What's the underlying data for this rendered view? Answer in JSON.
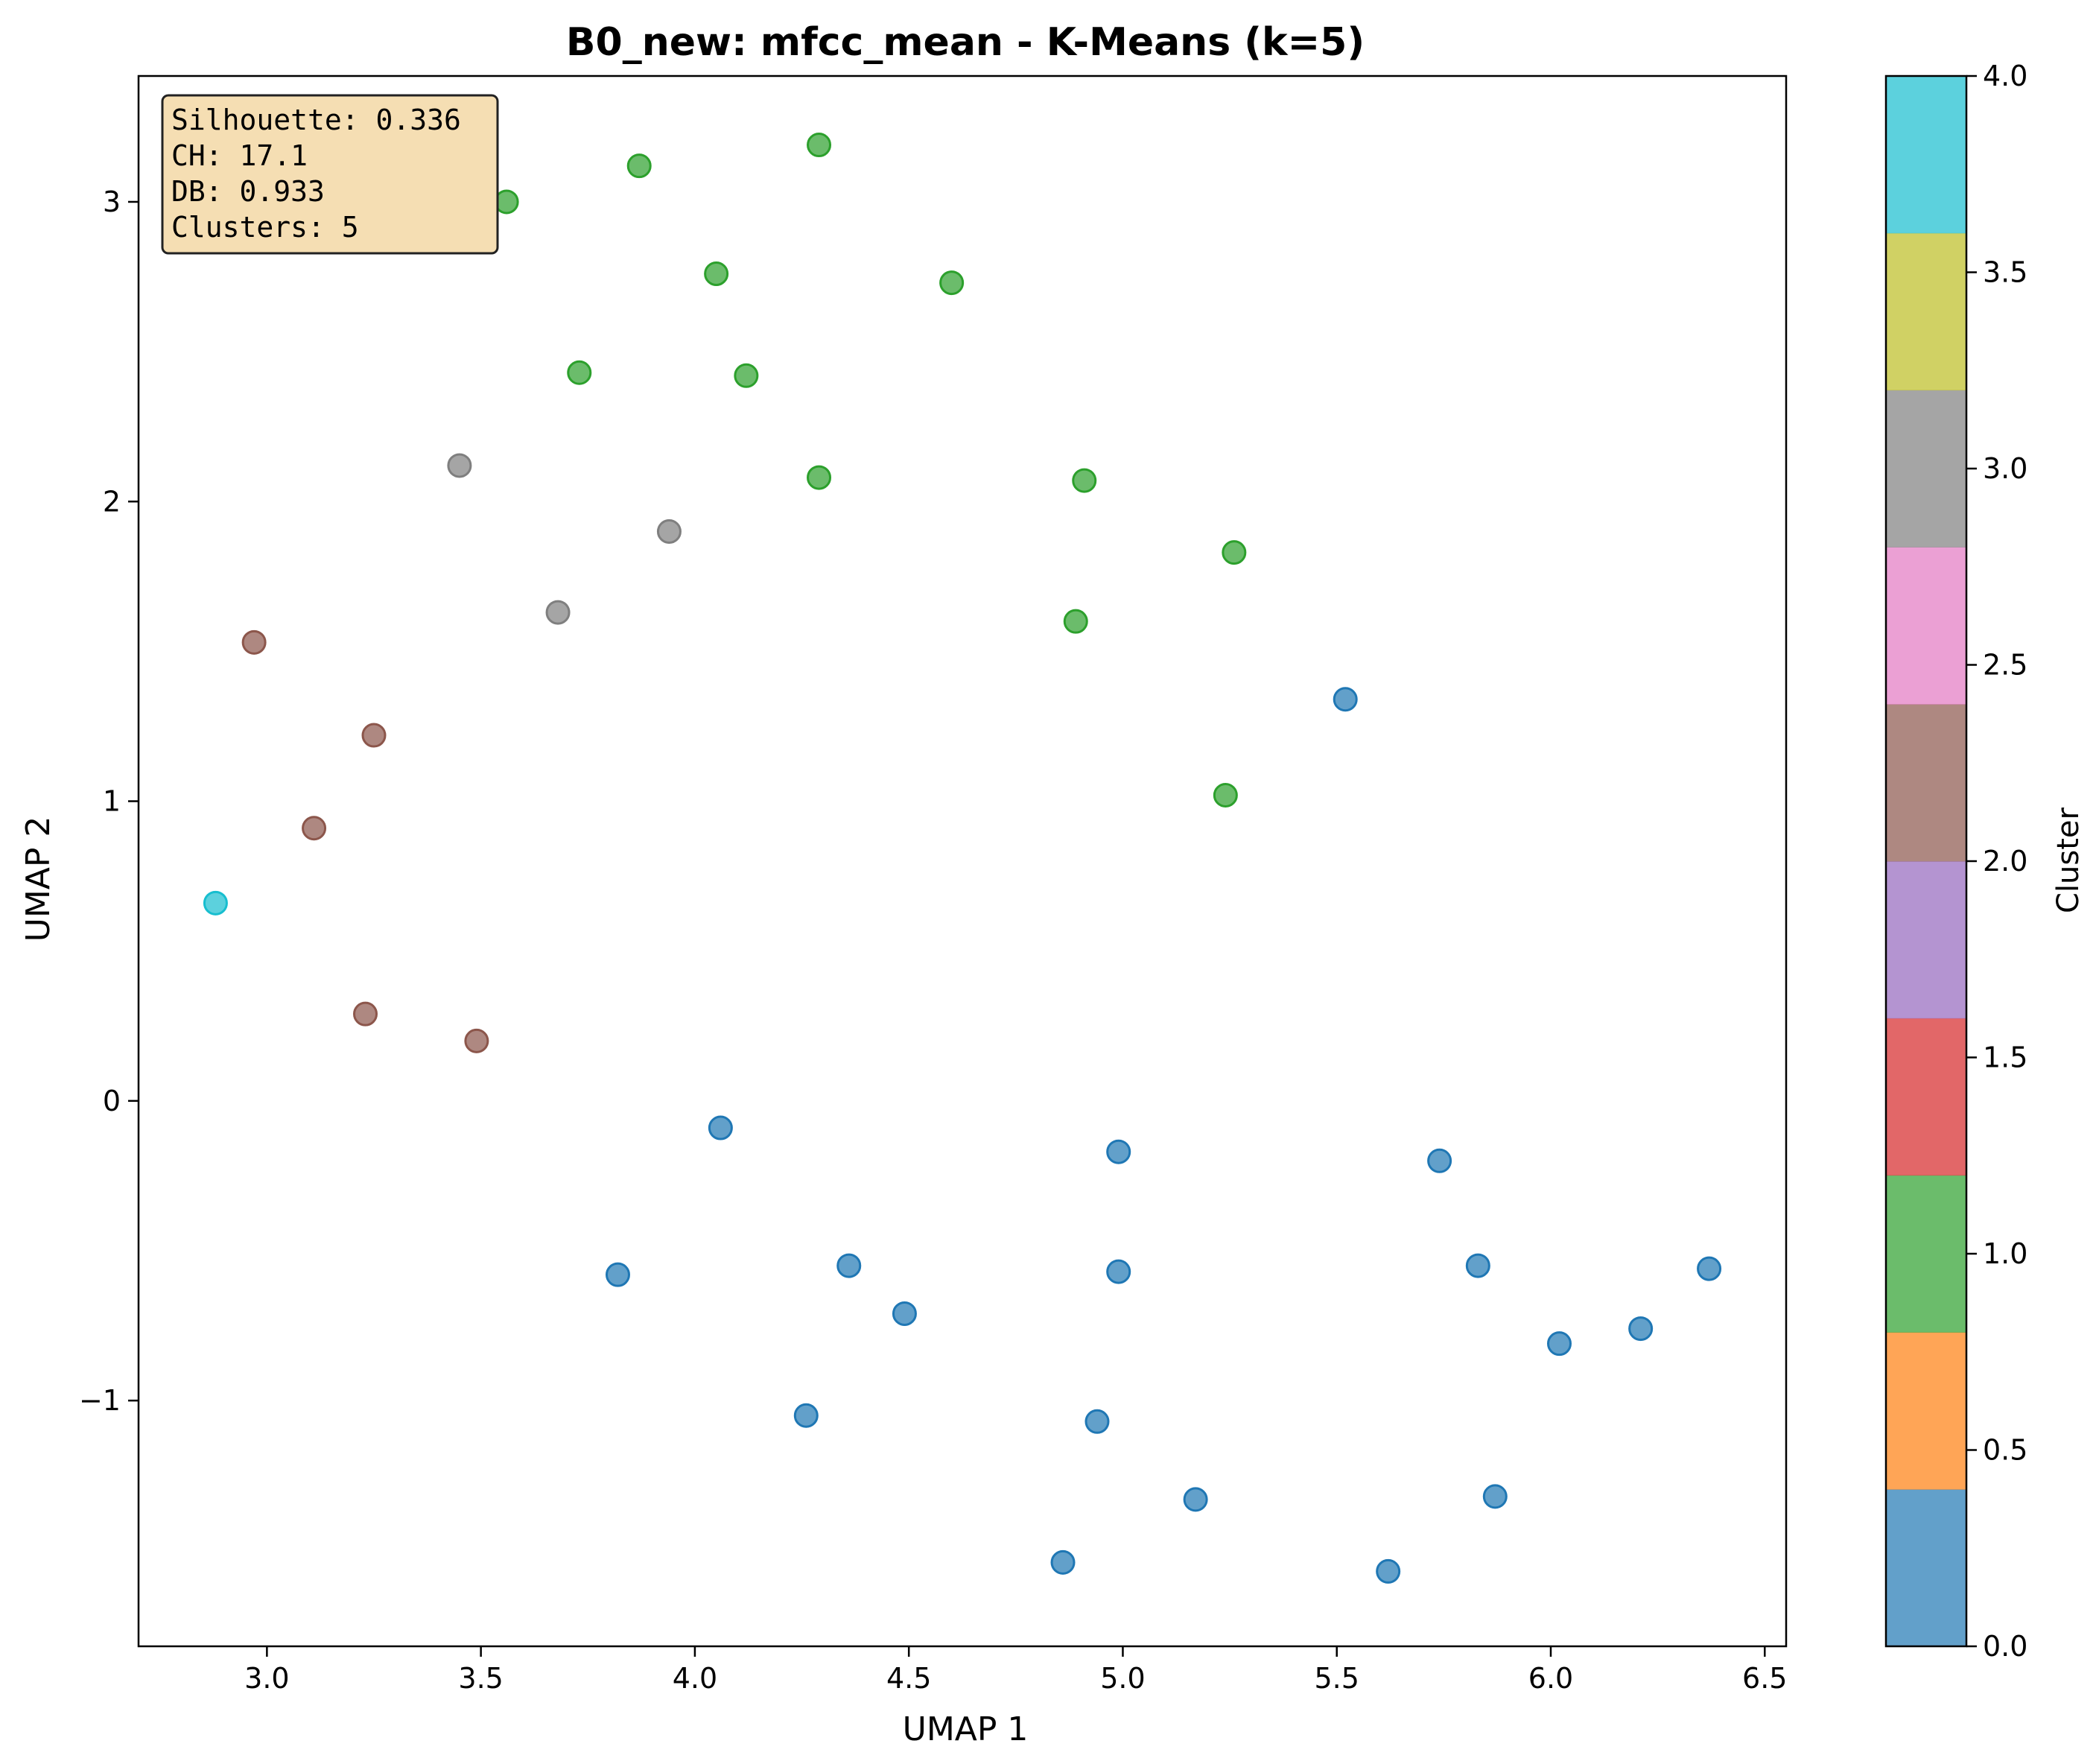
{
  "chart_data": {
    "type": "scatter",
    "title": "B0_new: mfcc_mean - K-Means (k=5)",
    "xlabel": "UMAP 1",
    "ylabel": "UMAP 2",
    "xlim": [
      2.7,
      6.55
    ],
    "ylim": [
      -1.82,
      3.42
    ],
    "x_ticks": [
      3.0,
      3.5,
      4.0,
      4.5,
      5.0,
      5.5,
      6.0,
      6.5
    ],
    "x_tick_labels": [
      "3.0",
      "3.5",
      "4.0",
      "4.5",
      "5.0",
      "5.5",
      "6.0",
      "6.5"
    ],
    "y_ticks": [
      -1,
      0,
      1,
      2,
      3
    ],
    "y_tick_labels": [
      "−1",
      "0",
      "1",
      "2",
      "3"
    ],
    "grid": false,
    "marker_alpha": 0.7,
    "stats_box": {
      "lines": [
        "Silhouette: 0.336",
        "CH: 17.1",
        "DB: 0.933",
        "Clusters: 5"
      ],
      "background": "#f5deb3"
    },
    "colorbar": {
      "label": "Cluster",
      "range": [
        0,
        4
      ],
      "ticks": [
        0.0,
        0.5,
        1.0,
        1.5,
        2.0,
        2.5,
        3.0,
        3.5,
        4.0
      ],
      "tick_labels": [
        "0.0",
        "0.5",
        "1.0",
        "1.5",
        "2.0",
        "2.5",
        "3.0",
        "3.5",
        "4.0"
      ],
      "bands": [
        "#1f77b4",
        "#ff7f0e",
        "#2ca02c",
        "#d62728",
        "#9467bd",
        "#8c564b",
        "#e377c2",
        "#7f7f7f",
        "#bcbd22",
        "#17becf"
      ]
    },
    "cluster_colors": {
      "0": "#1f77b4",
      "1": "#2ca02c",
      "2": "#8c564b",
      "3": "#7f7f7f",
      "4": "#17becf"
    },
    "points": [
      {
        "x": 3.56,
        "y": 3.0,
        "cluster": 1
      },
      {
        "x": 3.87,
        "y": 3.12,
        "cluster": 1
      },
      {
        "x": 4.29,
        "y": 3.19,
        "cluster": 1
      },
      {
        "x": 4.05,
        "y": 2.76,
        "cluster": 1
      },
      {
        "x": 4.6,
        "y": 2.73,
        "cluster": 1
      },
      {
        "x": 3.73,
        "y": 2.43,
        "cluster": 1
      },
      {
        "x": 4.12,
        "y": 2.42,
        "cluster": 1
      },
      {
        "x": 4.29,
        "y": 2.08,
        "cluster": 1
      },
      {
        "x": 4.91,
        "y": 2.07,
        "cluster": 1
      },
      {
        "x": 5.26,
        "y": 1.83,
        "cluster": 1
      },
      {
        "x": 4.89,
        "y": 1.6,
        "cluster": 1
      },
      {
        "x": 5.24,
        "y": 1.02,
        "cluster": 1
      },
      {
        "x": 3.45,
        "y": 2.12,
        "cluster": 3
      },
      {
        "x": 3.94,
        "y": 1.9,
        "cluster": 3
      },
      {
        "x": 3.68,
        "y": 1.63,
        "cluster": 3
      },
      {
        "x": 2.97,
        "y": 1.53,
        "cluster": 2
      },
      {
        "x": 3.25,
        "y": 1.22,
        "cluster": 2
      },
      {
        "x": 3.11,
        "y": 0.91,
        "cluster": 2
      },
      {
        "x": 3.23,
        "y": 0.29,
        "cluster": 2
      },
      {
        "x": 3.49,
        "y": 0.2,
        "cluster": 2
      },
      {
        "x": 2.88,
        "y": 0.66,
        "cluster": 4
      },
      {
        "x": 5.52,
        "y": 1.34,
        "cluster": 0
      },
      {
        "x": 4.06,
        "y": -0.09,
        "cluster": 0
      },
      {
        "x": 4.99,
        "y": -0.17,
        "cluster": 0
      },
      {
        "x": 5.74,
        "y": -0.2,
        "cluster": 0
      },
      {
        "x": 3.82,
        "y": -0.58,
        "cluster": 0
      },
      {
        "x": 4.36,
        "y": -0.55,
        "cluster": 0
      },
      {
        "x": 4.49,
        "y": -0.71,
        "cluster": 0
      },
      {
        "x": 4.99,
        "y": -0.57,
        "cluster": 0
      },
      {
        "x": 5.83,
        "y": -0.55,
        "cluster": 0
      },
      {
        "x": 6.37,
        "y": -0.56,
        "cluster": 0
      },
      {
        "x": 6.02,
        "y": -0.81,
        "cluster": 0
      },
      {
        "x": 6.21,
        "y": -0.76,
        "cluster": 0
      },
      {
        "x": 4.26,
        "y": -1.05,
        "cluster": 0
      },
      {
        "x": 4.94,
        "y": -1.07,
        "cluster": 0
      },
      {
        "x": 5.17,
        "y": -1.33,
        "cluster": 0
      },
      {
        "x": 5.87,
        "y": -1.32,
        "cluster": 0
      },
      {
        "x": 4.86,
        "y": -1.54,
        "cluster": 0
      },
      {
        "x": 5.62,
        "y": -1.57,
        "cluster": 0
      }
    ]
  }
}
